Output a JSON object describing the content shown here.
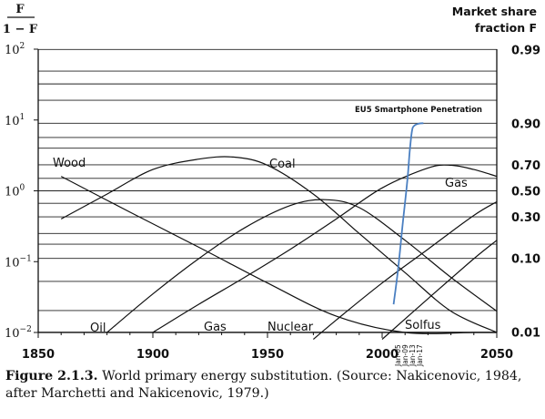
{
  "chart_data": {
    "type": "line",
    "left_axis_title_num": "F",
    "left_axis_title_den": "1 − F",
    "right_axis_title_line1": "Market share",
    "right_axis_title_line2": "fraction F",
    "x_tick_labels": [
      "1850",
      "1900",
      "1950",
      "2000",
      "2050"
    ],
    "y_left_tick_labels": [
      {
        "base": "10",
        "exp": "2"
      },
      {
        "base": "10",
        "exp": "1"
      },
      {
        "base": "10",
        "exp": "0"
      },
      {
        "base": "10",
        "exp": "−1"
      },
      {
        "base": "10",
        "exp": "−2"
      }
    ],
    "y_right_tick_labels": [
      "0.99",
      "0.90",
      "0.70",
      "0.50",
      "0.30",
      "0.10",
      "0.01"
    ],
    "xlim": [
      1850,
      2050
    ],
    "ylim_log10": [
      -2,
      2
    ],
    "y_scale": "log",
    "grid": "horizontal",
    "series": [
      {
        "name": "Wood",
        "x": [
          1860,
          1890,
          1920,
          1950,
          1980,
          2010,
          2040,
          2050
        ],
        "y": [
          1.6,
          0.5,
          0.16,
          0.05,
          0.017,
          0.01,
          0.01,
          0.01
        ]
      },
      {
        "name": "Coal",
        "x": [
          1860,
          1880,
          1900,
          1920,
          1935,
          1950,
          1970,
          1990,
          2010,
          2030,
          2050
        ],
        "y": [
          0.4,
          0.9,
          2.0,
          2.8,
          3.0,
          2.3,
          0.9,
          0.25,
          0.07,
          0.02,
          0.01
        ]
      },
      {
        "name": "Oil",
        "x": [
          1880,
          1900,
          1920,
          1940,
          1960,
          1975,
          1990,
          2010,
          2030,
          2050
        ],
        "y": [
          0.01,
          0.035,
          0.11,
          0.3,
          0.62,
          0.75,
          0.58,
          0.2,
          0.06,
          0.02
        ]
      },
      {
        "name": "Gas",
        "x": [
          1900,
          1920,
          1940,
          1960,
          1980,
          2000,
          2020,
          2030,
          2040,
          2050
        ],
        "y": [
          0.01,
          0.025,
          0.06,
          0.15,
          0.4,
          1.1,
          2.1,
          2.3,
          2.0,
          1.6
        ]
      },
      {
        "name": "Nuclear",
        "x": [
          1970,
          1980,
          2000,
          2020,
          2040,
          2050
        ],
        "y": [
          0.008,
          0.015,
          0.05,
          0.15,
          0.45,
          0.7
        ]
      },
      {
        "name": "Solfus",
        "x": [
          2000,
          2020,
          2040,
          2050
        ],
        "y": [
          0.008,
          0.03,
          0.11,
          0.2
        ]
      },
      {
        "name": "EU5 Smartphone Penetration",
        "x": [
          2005,
          2007,
          2009,
          2011,
          2012,
          2013,
          2014,
          2016,
          2018
        ],
        "y": [
          0.025,
          0.08,
          0.35,
          1.4,
          3.5,
          7.0,
          8.3,
          8.9,
          9.0
        ],
        "color": "#4a7fc1"
      }
    ],
    "annotations": {
      "wood": "Wood",
      "coal": "Coal",
      "gas_top": "Gas",
      "oil": "Oil",
      "gas_bottom": "Gas",
      "nuclear": "Nuclear",
      "solfus": "Solfus",
      "eu5": "EU5 Smartphone Penetration",
      "date_labels": [
        "Jan-05",
        "Jan-09",
        "Jan-13",
        "Jan-17"
      ]
    }
  },
  "caption": {
    "label": "Figure 2.1.3.",
    "text": "World primary energy substitution. (Source: Nakicenovic, 1984, after Marchetti and Nakicenovic, 1979.)"
  }
}
